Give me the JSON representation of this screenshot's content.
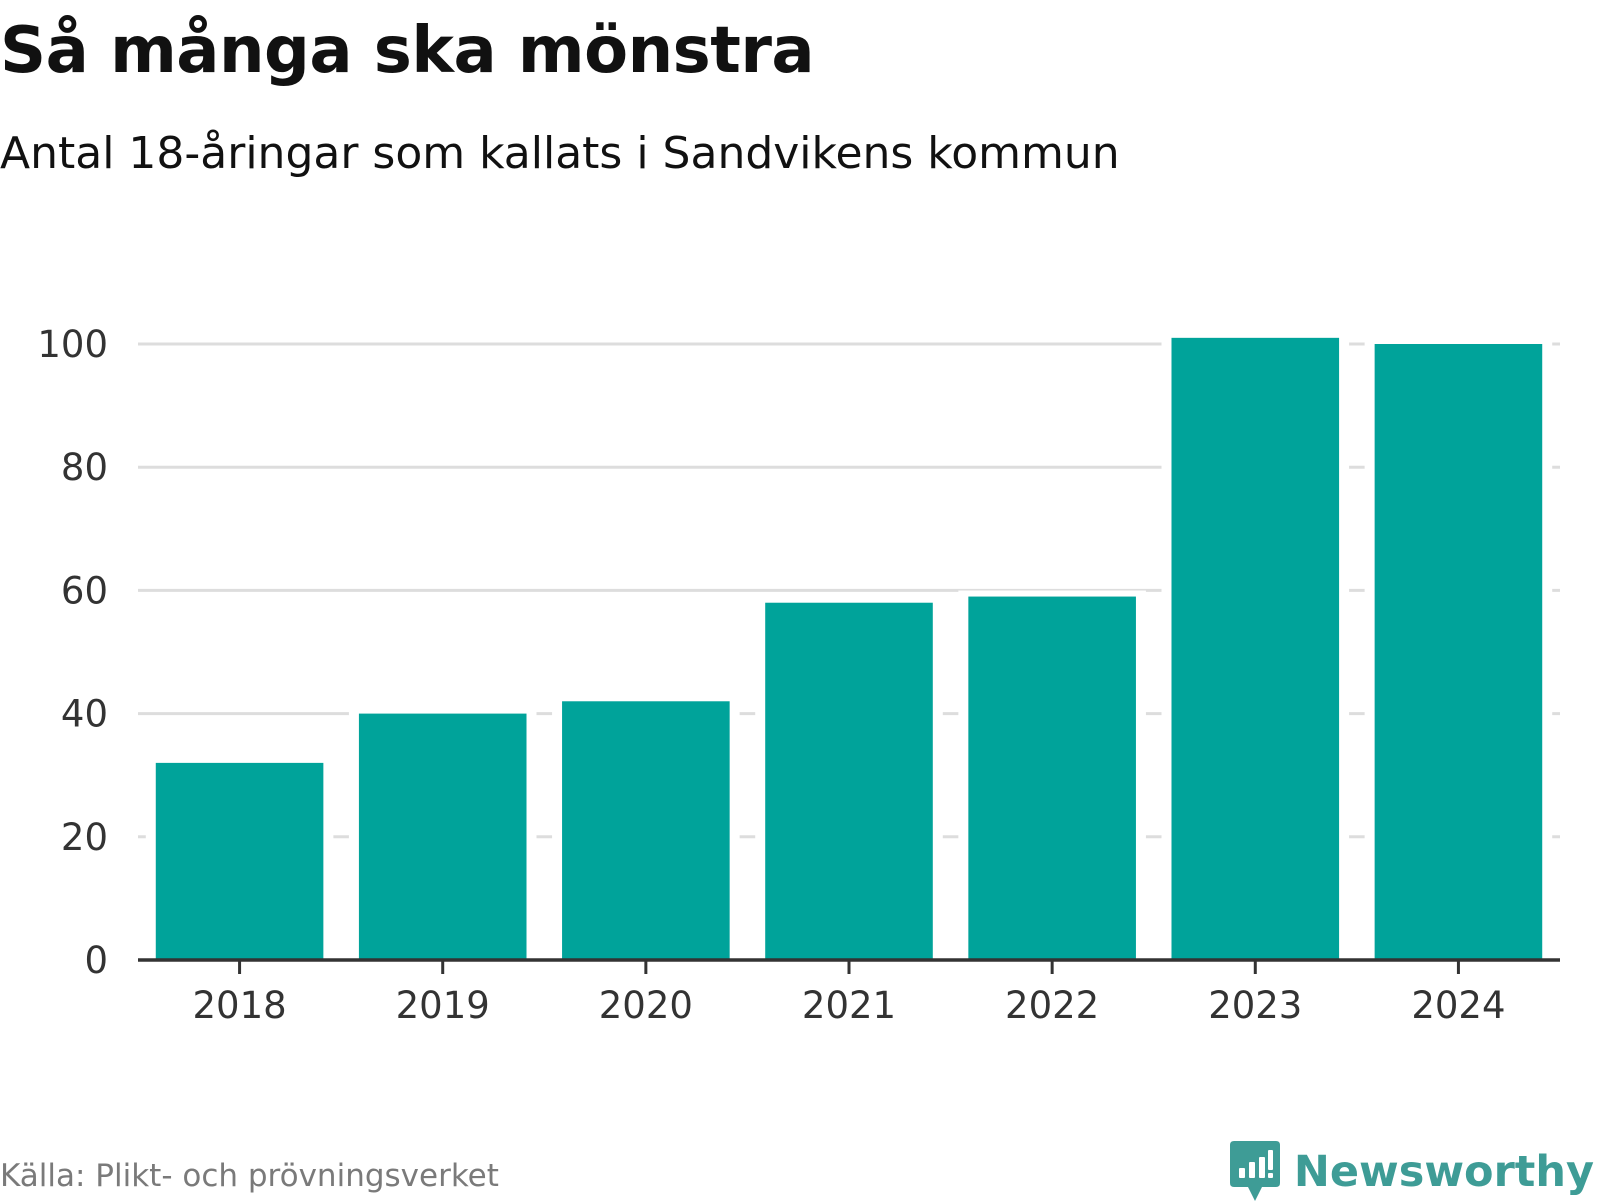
{
  "header": {
    "title": "Så många ska mönstra",
    "subtitle": "Antal 18-åringar som kallats i Sandvikens kommun"
  },
  "footer": {
    "source": "Källa: Plikt- och prövningsverket",
    "brand_name": "Newsworthy",
    "brand_icon": "newsworthy-logo-icon",
    "brand_color": "#3e9c96"
  },
  "colors": {
    "bar": "#00a39a",
    "grid": "#dddddd",
    "axis": "#333333",
    "tick_text": "#333333"
  },
  "chart_data": {
    "type": "bar",
    "title": "Så många ska mönstra",
    "subtitle": "Antal 18-åringar som kallats i Sandvikens kommun",
    "categories": [
      "2018",
      "2019",
      "2020",
      "2021",
      "2022",
      "2023",
      "2024"
    ],
    "values": [
      32,
      40,
      42,
      58,
      59,
      101,
      100
    ],
    "xlabel": "",
    "ylabel": "",
    "ylim": [
      0,
      100
    ],
    "yticks": [
      0,
      20,
      40,
      60,
      80,
      100
    ],
    "grid": true,
    "legend": "none"
  }
}
